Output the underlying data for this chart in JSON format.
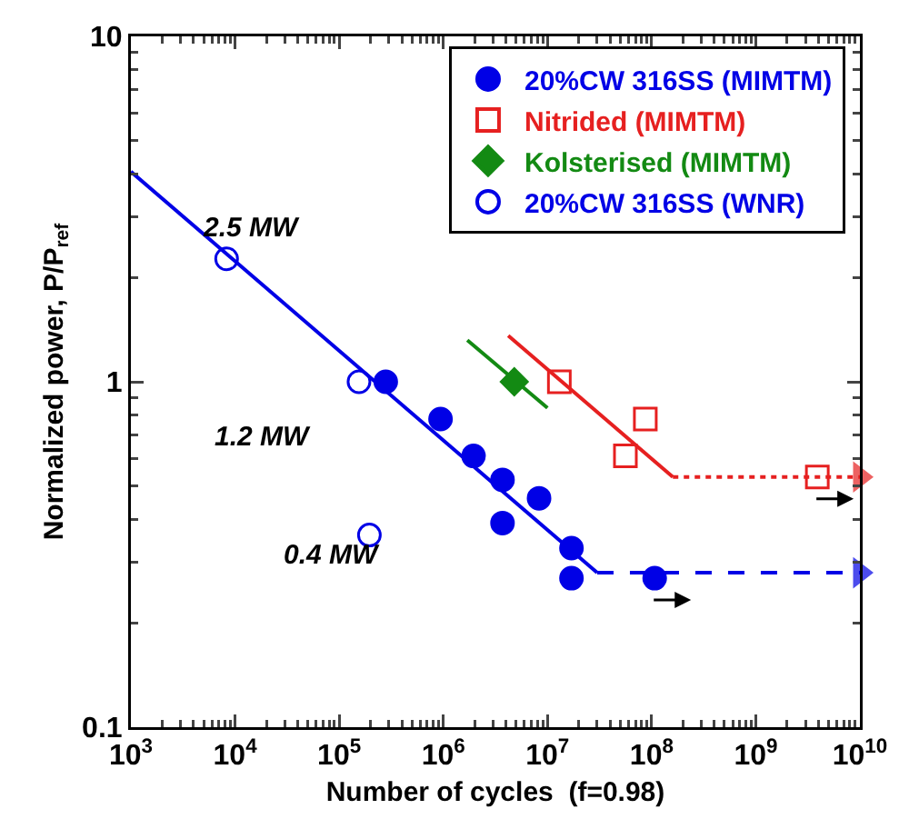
{
  "chart_data": {
    "type": "scatter",
    "xlabel": "Number of cycles  (f=0.98)",
    "ylabel": "Normalized power, P/P$_{ref}$",
    "log": "xy",
    "grid": false,
    "legend": "top right",
    "xlim": [
      1000,
      10000000000
    ],
    "ylim": [
      0.1,
      10
    ],
    "xticks": [
      {
        "value": 1000,
        "label": "10$^{3}$"
      },
      {
        "value": 10000,
        "label": "10$^{4}$"
      },
      {
        "value": 100000,
        "label": "10$^{5}$"
      },
      {
        "value": 1000000,
        "label": "10$^{6}$"
      },
      {
        "value": 10000000,
        "label": "10$^{7}$"
      },
      {
        "value": 100000000,
        "label": "10$^{8}$"
      },
      {
        "value": 1000000000,
        "label": "10$^{9}$"
      },
      {
        "value": 10000000000,
        "label": "10$^{10}$"
      }
    ],
    "yticks": [
      0.1,
      1,
      10
    ],
    "annotations": [
      "2.5 MW",
      "1.2 MW",
      "0.4 MW"
    ],
    "series": [
      {
        "name": "20%CW 316SS (MIMTM)",
        "color": "#0000e6",
        "marker": "circle",
        "x": [
          280000,
          940000,
          1950000,
          3700000,
          3700000,
          8300000,
          17000000,
          17000000,
          107000000
        ],
        "values": [
          1.0,
          0.78,
          0.61,
          0.52,
          0.39,
          0.46,
          0.33,
          0.27,
          0.27
        ]
      },
      {
        "name": "Nitrided (MIMTM)",
        "color": "#e62020",
        "marker": "square-open",
        "x": [
          13000000,
          56000000,
          87000000,
          3900000000
        ],
        "values": [
          1.0,
          0.61,
          0.78,
          0.53
        ]
      },
      {
        "name": "Kolsterised (MIMTM)",
        "color": "#138a13",
        "marker": "diamond",
        "x": [
          4800000
        ],
        "values": [
          1.0
        ]
      },
      {
        "name": "20%CW 316SS (WNR)",
        "color": "#0000e6",
        "marker": "circle-open",
        "x": [
          8300,
          155000,
          195000
        ],
        "values": [
          2.27,
          1.0,
          0.36
        ]
      },
      {
        "type": "line",
        "color": "#0000e6",
        "line_style": "solid",
        "x": [
          1000,
          30000000
        ],
        "values": [
          4.06,
          0.28
        ]
      },
      {
        "type": "line",
        "color": "#0000e6",
        "line_style": "dashed",
        "x": [
          30000000,
          10000000000
        ],
        "values": [
          0.28,
          0.28
        ]
      },
      {
        "type": "line",
        "color": "#e62020",
        "line_style": "solid",
        "x": [
          4200000,
          160000000
        ],
        "values": [
          1.36,
          0.53
        ]
      },
      {
        "type": "line",
        "color": "#e62020",
        "line_style": "dotted",
        "x": [
          160000000,
          10000000000
        ],
        "values": [
          0.53,
          0.53
        ]
      },
      {
        "type": "line",
        "color": "#138a13",
        "line_style": "solid",
        "x": [
          1700000,
          10000000
        ],
        "values": [
          1.32,
          0.84
        ]
      }
    ]
  }
}
